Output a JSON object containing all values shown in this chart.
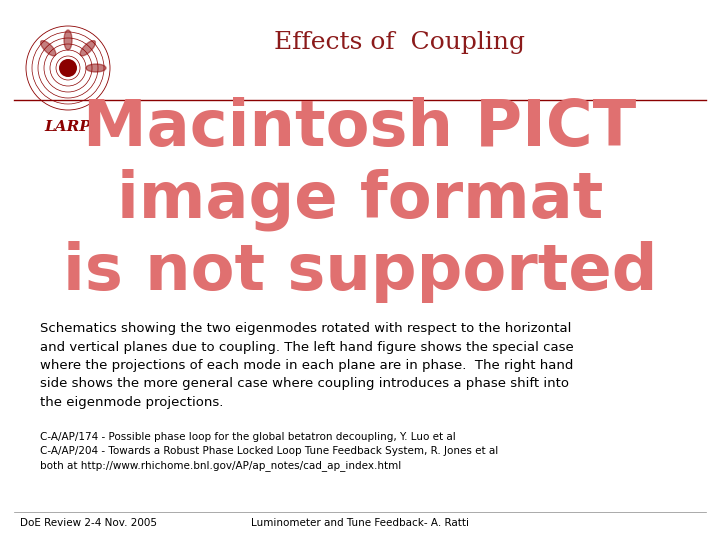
{
  "title": "Effects of  Coupling",
  "title_color": "#8B1A1A",
  "title_fontsize": 18,
  "larp_text": "LARP",
  "larp_color": "#8B0000",
  "larp_fontsize": 11,
  "pict_text": "Macintosh PICT\nimage format\nis not supported",
  "pict_color": "#E07070",
  "pict_fontsize": 46,
  "body_text": "Schematics showing the two eigenmodes rotated with respect to the horizontal\nand vertical planes due to coupling. The left hand figure shows the special case\nwhere the projections of each mode in each plane are in phase.  The right hand\nside shows the more general case where coupling introduces a phase shift into\nthe eigenmode projections.",
  "body_fontsize": 9.5,
  "body_color": "#000000",
  "ref1": "C-A/AP/174 - Possible phase loop for the global betatron decoupling, Y. Luo et al",
  "ref2": "C-A/AP/204 - Towards a Robust Phase Locked Loop Tune Feedback System, R. Jones et al",
  "ref3": "both at http://www.rhichome.bnl.gov/AP/ap_notes/cad_ap_index.html",
  "ref_fontsize": 7.5,
  "footer_left": "DoE Review 2-4 Nov. 2005",
  "footer_right": "Luminometer and Tune Feedback- A. Ratti",
  "footer_fontsize": 7.5,
  "bg_color": "#FFFFFF",
  "border_color": "#8B0000",
  "border_linewidth": 1.5
}
